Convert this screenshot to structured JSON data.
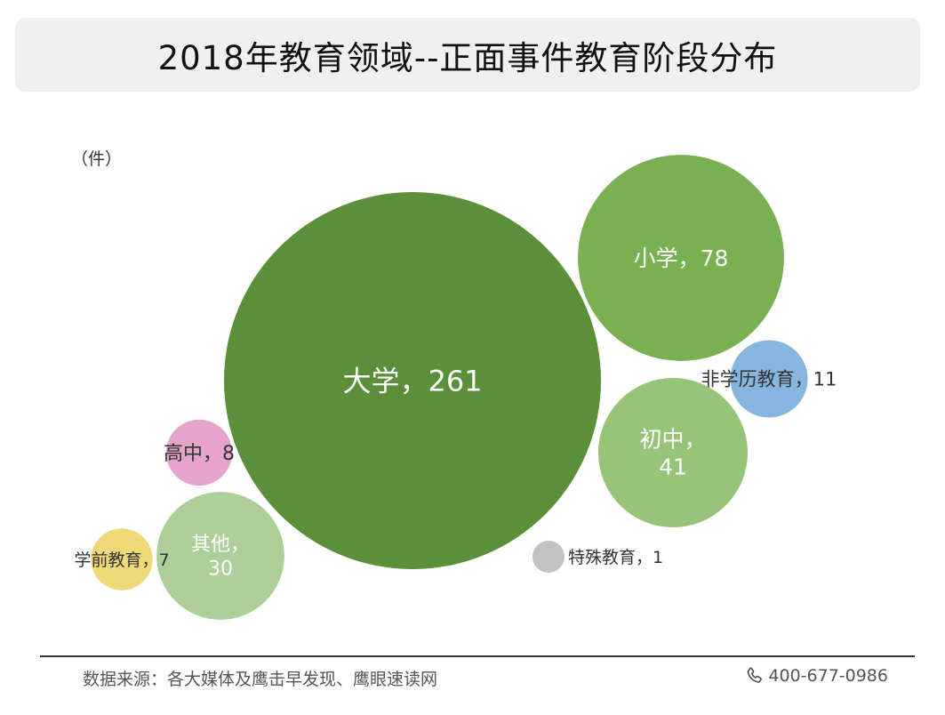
{
  "title": "2018年教育领域--正面事件教育阶段分布",
  "unit": "（件）",
  "footer": {
    "source": "数据来源：各大媒体及鹰击早发现、鹰眼速读网",
    "phone": "400-677-0986",
    "phone_icon": "phone-icon"
  },
  "chart_data": {
    "type": "bubble",
    "title": "2018年教育领域--正面事件教育阶段分布",
    "unit": "（件）",
    "series": [
      {
        "name": "大学",
        "value": 261,
        "label": "大学，261",
        "color": "#5b8f3a"
      },
      {
        "name": "小学",
        "value": 78,
        "label": "小学，78",
        "color": "#79b052"
      },
      {
        "name": "初中",
        "value": 41,
        "label": "初中，\n41",
        "color": "#98c47a"
      },
      {
        "name": "其他",
        "value": 30,
        "label": "其他，\n30",
        "color": "#add09a"
      },
      {
        "name": "非学历教育",
        "value": 11,
        "label": "非学历教育，11",
        "color": "#86b5e0"
      },
      {
        "name": "高中",
        "value": 8,
        "label": "高中，8",
        "color": "#e4a4cb"
      },
      {
        "name": "学前教育",
        "value": 7,
        "label": "学前教育，7",
        "color": "#eed877"
      },
      {
        "name": "特殊教育",
        "value": 1,
        "label": "特殊教育，1",
        "color": "#c3c3c3"
      }
    ]
  }
}
